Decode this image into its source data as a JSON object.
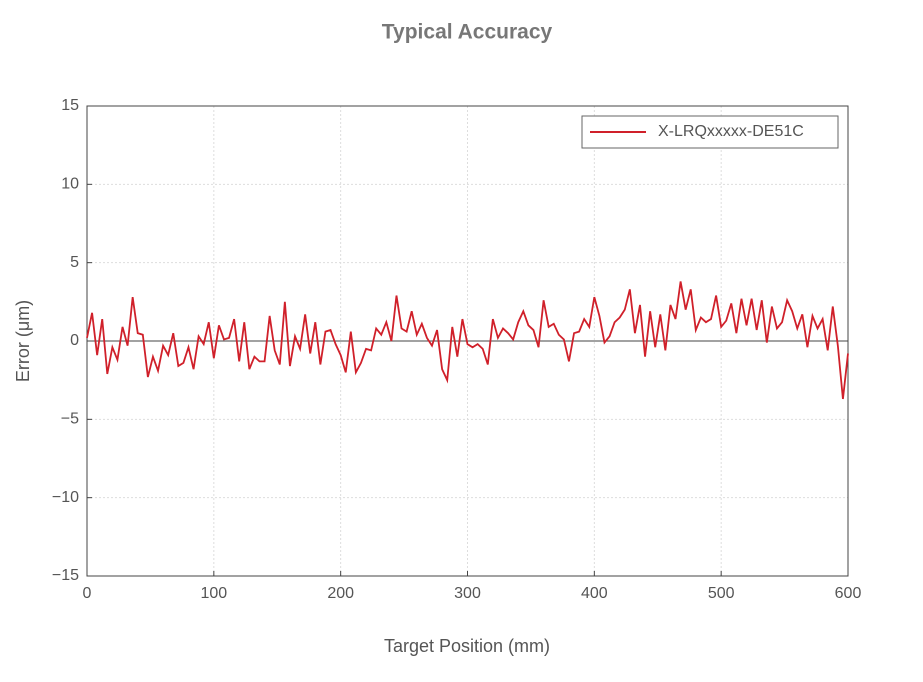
{
  "chart_data": {
    "type": "line",
    "title": "Typical Accuracy",
    "xlabel": "Target Position (mm)",
    "ylabel": "Error (μm)",
    "x": [
      0,
      4,
      8,
      12,
      16,
      20,
      24,
      28,
      32,
      36,
      40,
      44,
      48,
      52,
      56,
      60,
      64,
      68,
      72,
      76,
      80,
      84,
      88,
      92,
      96,
      100,
      104,
      108,
      112,
      116,
      120,
      124,
      128,
      132,
      136,
      140,
      144,
      148,
      152,
      156,
      160,
      164,
      168,
      172,
      176,
      180,
      184,
      188,
      192,
      196,
      200,
      204,
      208,
      212,
      216,
      220,
      224,
      228,
      232,
      236,
      240,
      244,
      248,
      252,
      256,
      260,
      264,
      268,
      272,
      276,
      280,
      284,
      288,
      292,
      296,
      300,
      304,
      308,
      312,
      316,
      320,
      324,
      328,
      332,
      336,
      340,
      344,
      348,
      352,
      356,
      360,
      364,
      368,
      372,
      376,
      380,
      384,
      388,
      392,
      396,
      400,
      404,
      408,
      412,
      416,
      420,
      424,
      428,
      432,
      436,
      440,
      444,
      448,
      452,
      456,
      460,
      464,
      468,
      472,
      476,
      480,
      484,
      488,
      492,
      496,
      500,
      504,
      508,
      512,
      516,
      520,
      524,
      528,
      532,
      536,
      540,
      544,
      548,
      552,
      556,
      560,
      564,
      568,
      572,
      576,
      580,
      584,
      588,
      592,
      596,
      600
    ],
    "series": [
      {
        "name": "X-LRQxxxxx-DE51C",
        "color": "#d0202a",
        "values": [
          0.2,
          1.8,
          -0.9,
          1.4,
          -2.1,
          -0.4,
          -1.2,
          0.9,
          -0.3,
          2.8,
          0.5,
          0.4,
          -2.3,
          -1.0,
          -1.9,
          -0.3,
          -0.9,
          0.5,
          -1.6,
          -1.4,
          -0.4,
          -1.8,
          0.3,
          -0.2,
          1.2,
          -1.1,
          1.0,
          0.1,
          0.2,
          1.4,
          -1.3,
          1.2,
          -1.8,
          -1.0,
          -1.3,
          -1.3,
          1.6,
          -0.6,
          -1.5,
          2.5,
          -1.6,
          0.3,
          -0.5,
          1.7,
          -0.8,
          1.2,
          -1.5,
          0.6,
          0.7,
          -0.2,
          -0.9,
          -2.0,
          0.6,
          -2.0,
          -1.4,
          -0.5,
          -0.6,
          0.8,
          0.4,
          1.2,
          0.0,
          2.9,
          0.8,
          0.6,
          1.9,
          0.4,
          1.1,
          0.2,
          -0.3,
          0.7,
          -1.8,
          -2.5,
          0.9,
          -1.0,
          1.4,
          -0.2,
          -0.4,
          -0.2,
          -0.5,
          -1.5,
          1.4,
          0.2,
          0.8,
          0.5,
          0.1,
          1.2,
          1.9,
          1.0,
          0.7,
          -0.4,
          2.6,
          0.9,
          1.1,
          0.4,
          0.1,
          -1.3,
          0.5,
          0.6,
          1.4,
          0.9,
          2.8,
          1.6,
          -0.1,
          0.3,
          1.2,
          1.5,
          2.0,
          3.3,
          0.5,
          2.3,
          -1.0,
          1.9,
          -0.4,
          1.7,
          -0.6,
          2.3,
          1.4,
          3.8,
          2.0,
          3.3,
          0.7,
          1.5,
          1.2,
          1.4,
          2.9,
          0.9,
          1.3,
          2.4,
          0.5,
          2.7,
          1.0,
          2.7,
          0.7,
          2.6,
          -0.1,
          2.2,
          0.8,
          1.2,
          2.6,
          1.9,
          0.8,
          1.7,
          -0.4,
          1.6,
          0.8,
          1.4,
          -0.6,
          2.2,
          -0.3,
          -3.7,
          -0.8
        ]
      }
    ],
    "xlim": [
      0,
      600
    ],
    "xticks": [
      0,
      100,
      200,
      300,
      400,
      500,
      600
    ],
    "ylim": [
      -15,
      15
    ],
    "yticks": [
      {
        "value": -15,
        "label": "−15"
      },
      {
        "value": -10,
        "label": "−10"
      },
      {
        "value": -5,
        "label": "−5"
      },
      0,
      5,
      10,
      15
    ],
    "grid": true,
    "legend": "upper right"
  }
}
